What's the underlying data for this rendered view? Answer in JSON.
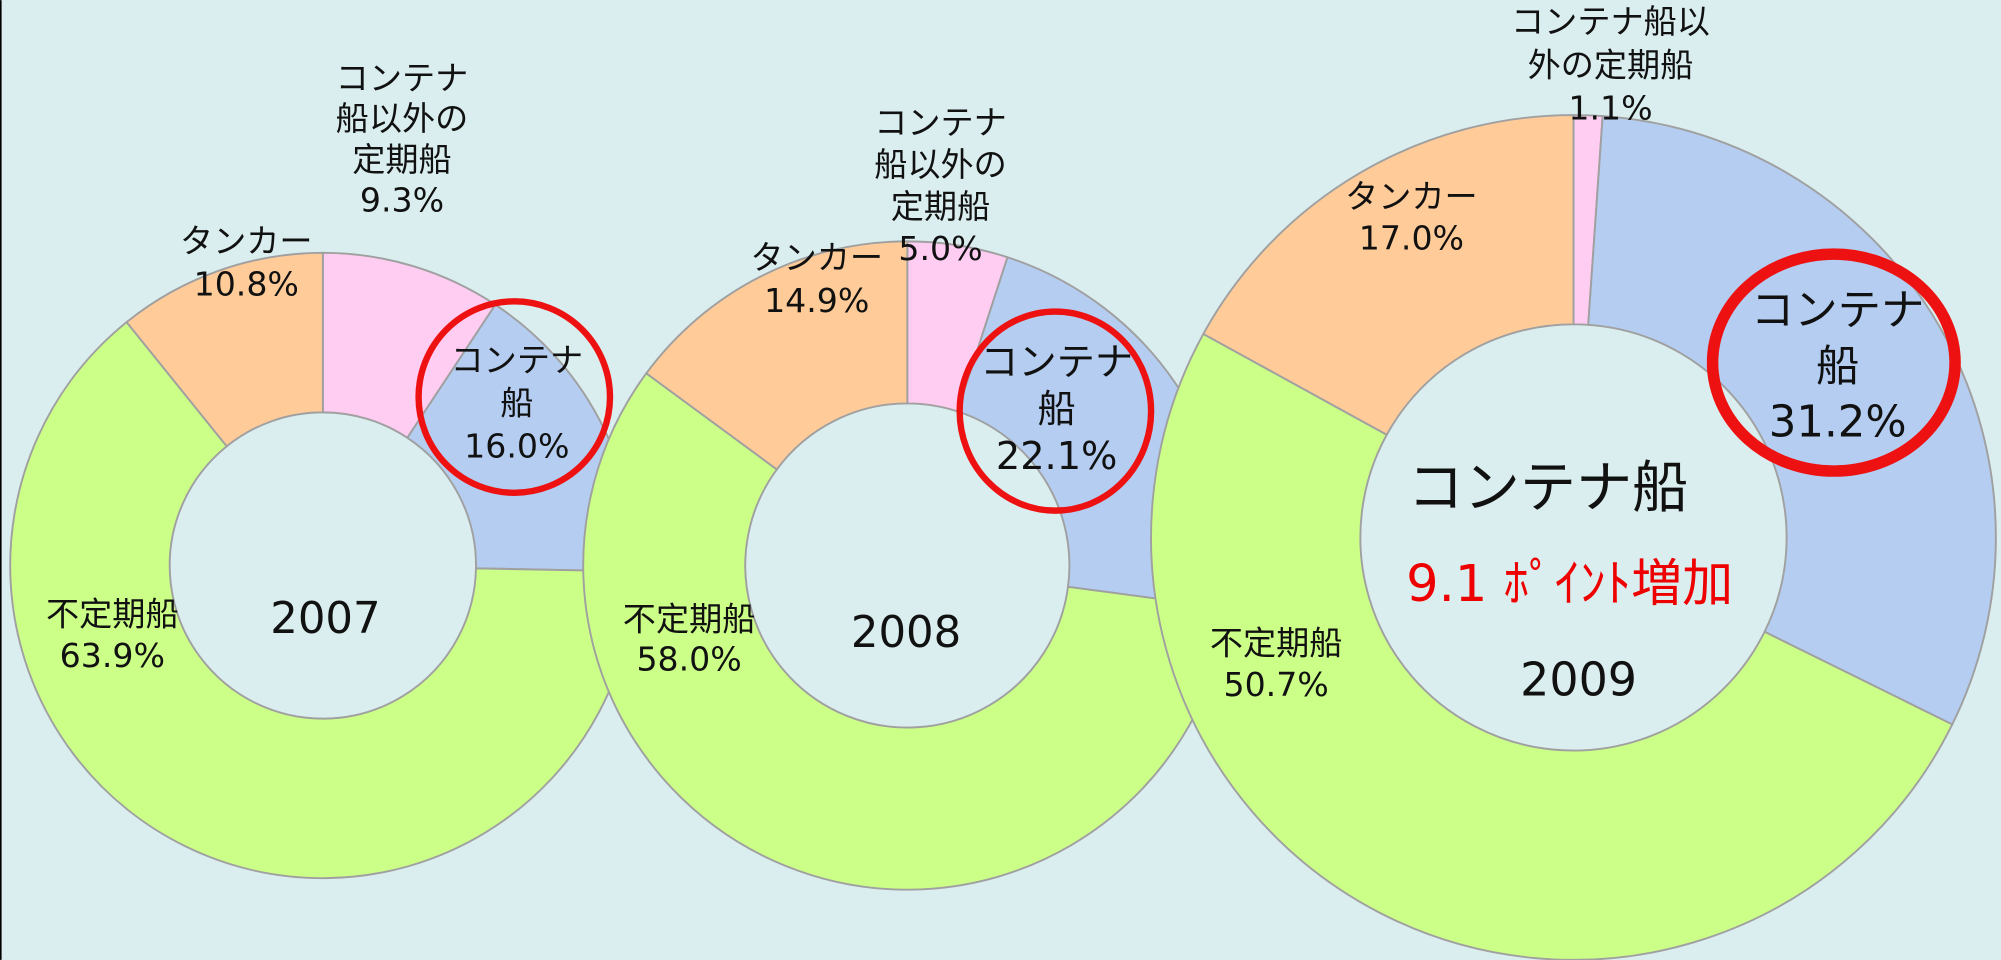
{
  "chart_data": [
    {
      "type": "donut",
      "title": "2007",
      "categories": [
        "コンテナ船以外の定期船",
        "コンテナ船",
        "不定期船",
        "タンカー"
      ],
      "values": [
        9.3,
        16.0,
        63.9,
        10.8
      ],
      "value_labels": [
        "9.3%",
        "16.0%",
        "63.9%",
        "10.8%"
      ],
      "colors": [
        "#ffccf2",
        "#b4cdf0",
        "#ccff88",
        "#ffcc99"
      ]
    },
    {
      "type": "donut",
      "title": "2008",
      "categories": [
        "コンテナ船以外の定期船",
        "コンテナ船",
        "不定期船",
        "タンカー"
      ],
      "values": [
        5.0,
        22.1,
        58.0,
        14.9
      ],
      "value_labels": [
        "5.0%",
        "22.1%",
        "58.0%",
        "14.9%"
      ],
      "colors": [
        "#ffccf2",
        "#b4cdf0",
        "#ccff88",
        "#ffcc99"
      ]
    },
    {
      "type": "donut",
      "title": "2009",
      "categories": [
        "コンテナ船以外の定期船",
        "コンテナ船",
        "不定期船",
        "タンカー"
      ],
      "values": [
        1.1,
        31.2,
        50.7,
        17.0
      ],
      "value_labels": [
        "1.1%",
        "31.2%",
        "50.7%",
        "17.0%"
      ],
      "colors": [
        "#ffccf2",
        "#b4cdf0",
        "#ccff88",
        "#ffcc99"
      ],
      "annotations": [
        "コンテナ船",
        "9.1 ﾎﾟｲﾝﾄ増加"
      ]
    }
  ]
}
